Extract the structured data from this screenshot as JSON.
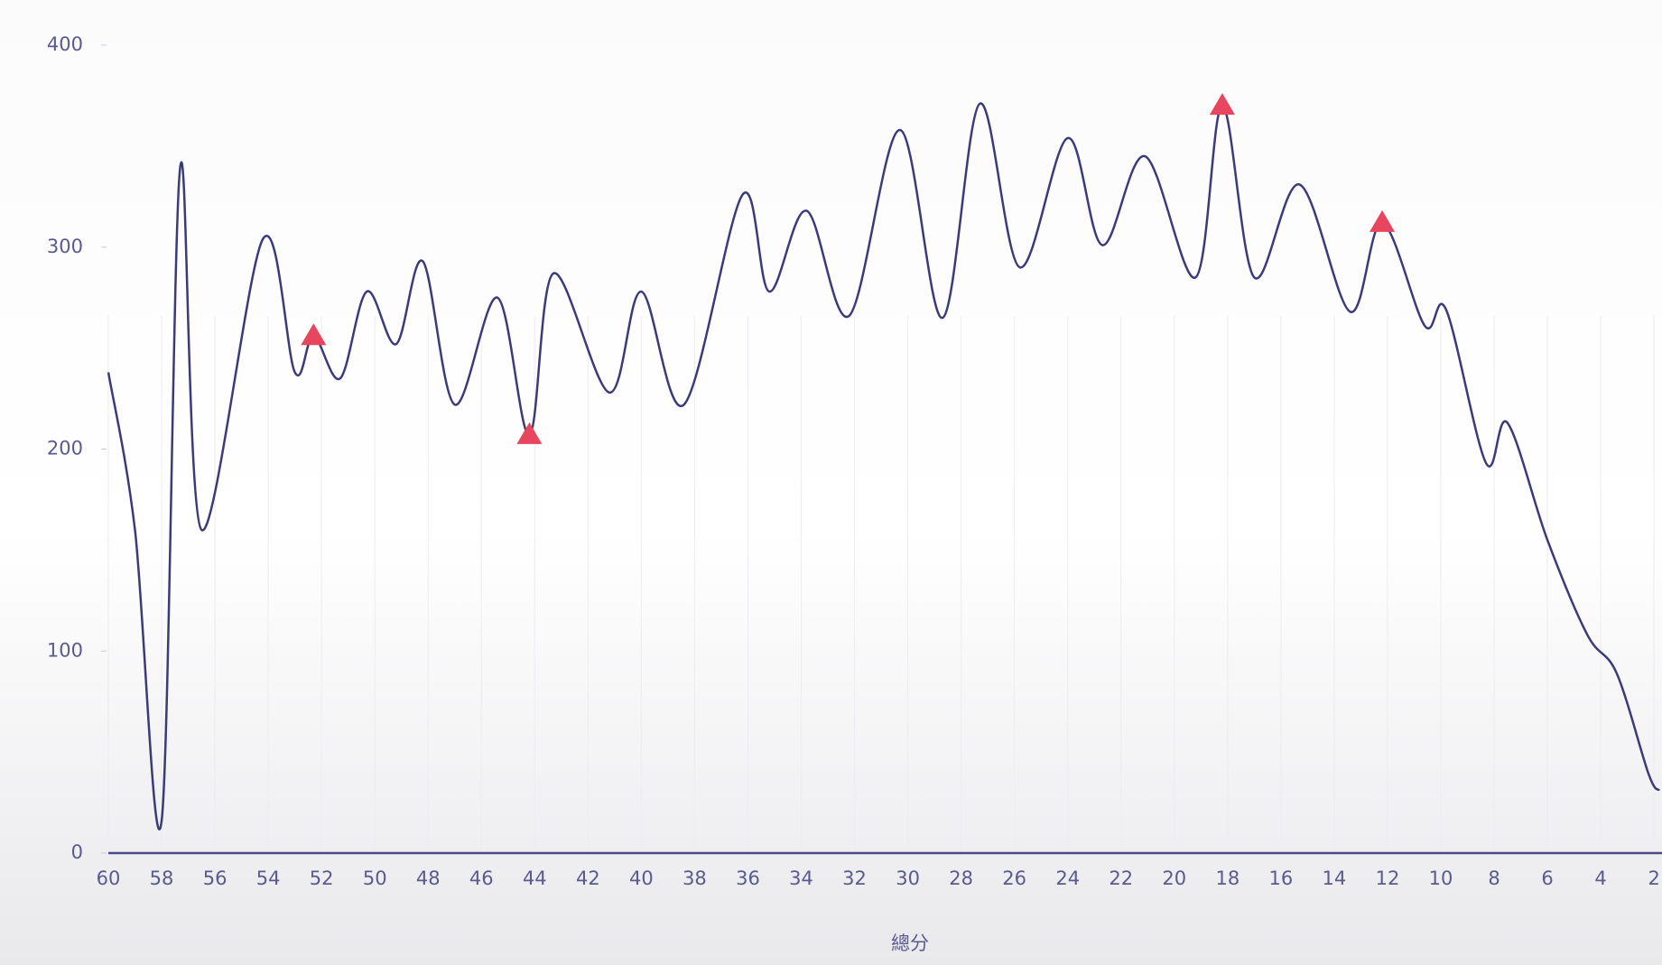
{
  "chart_data": {
    "type": "line",
    "x_label": "總分",
    "x": [
      60,
      59,
      58,
      57.3,
      56.5,
      54.2,
      53,
      52.3,
      51.3,
      50.3,
      49.2,
      48.2,
      47,
      45.4,
      44.2,
      43.3,
      41.2,
      40,
      38.4,
      36.2,
      35.2,
      33.8,
      32.2,
      30.3,
      28.7,
      27.3,
      25.8,
      24,
      22.7,
      21.1,
      19.2,
      18.2,
      17,
      15.3,
      13.4,
      12.2,
      10.6,
      9.8,
      8.3,
      7.5,
      6,
      4.5,
      3.4,
      2.2,
      1.8
    ],
    "values": [
      238,
      160,
      16,
      340,
      160,
      304,
      238,
      256,
      235,
      278,
      252,
      293,
      222,
      275,
      207,
      287,
      228,
      278,
      222,
      326,
      278,
      318,
      266,
      358,
      265,
      371,
      290,
      354,
      301,
      345,
      285,
      370,
      285,
      331,
      268,
      312,
      261,
      269,
      193,
      213,
      155,
      108,
      89,
      39,
      31
    ],
    "color": "#3b3b7a",
    "markers": {
      "x": [
        52.3,
        44.2,
        18.2,
        12.2
      ],
      "values": [
        256,
        207,
        370,
        312
      ],
      "color": "#e8455f"
    },
    "xlim": [
      60,
      1.7
    ],
    "xticks": [
      60,
      58,
      56,
      54,
      52,
      50,
      48,
      46,
      44,
      42,
      40,
      38,
      36,
      34,
      32,
      30,
      28,
      26,
      24,
      22,
      20,
      18,
      16,
      14,
      12,
      10,
      8,
      6,
      4,
      2
    ],
    "ylim": [
      0,
      400
    ],
    "yticks": [
      0,
      100,
      200,
      300,
      400
    ]
  }
}
